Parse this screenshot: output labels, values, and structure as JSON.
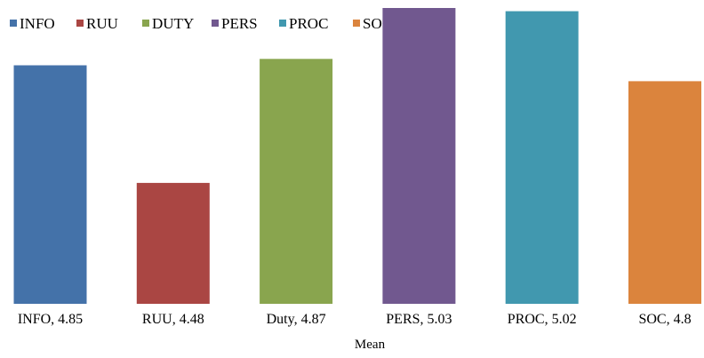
{
  "chart_data": {
    "type": "bar",
    "categories": [
      "INFO, 4.85",
      "RUU, 4.48",
      "Duty, 4.87",
      "PERS, 5.03",
      "PROC, 5.02",
      "SOC, 4.8"
    ],
    "values": [
      4.85,
      4.48,
      4.87,
      5.03,
      5.02,
      4.8
    ],
    "series": [
      {
        "name": "INFO",
        "value": 4.85,
        "color": "#4472a9"
      },
      {
        "name": "RUU",
        "value": 4.48,
        "color": "#aa4643"
      },
      {
        "name": "DUTY",
        "value": 4.87,
        "color": "#89a54e"
      },
      {
        "name": "PERS",
        "value": 5.03,
        "color": "#71588f"
      },
      {
        "name": "PROC",
        "value": 5.02,
        "color": "#4198af"
      },
      {
        "name": "SOC",
        "value": 4.8,
        "color": "#db843d"
      }
    ],
    "xlabel": "Mean",
    "ylabel": "",
    "ylim": [
      4.1,
      5.03
    ],
    "grid": false,
    "legend_position": "top"
  }
}
